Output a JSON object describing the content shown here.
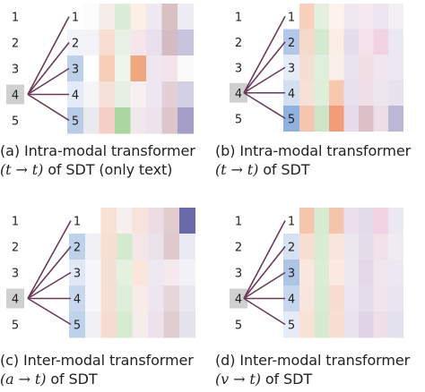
{
  "panels": [
    {
      "id": "a",
      "caption_line1": "(a) Intra-modal transformer",
      "caption_math": "(t → t)",
      "caption_rest": " of SDT (only text)",
      "left_labels": [
        "1",
        "2",
        "3",
        "4",
        "5"
      ],
      "row_labels": [
        "1",
        "2",
        "3",
        "4",
        "5"
      ],
      "highlighted_left": "4",
      "row_label_colors": [
        "#ffffff",
        "#f0f3fa",
        "#bcd0ea",
        "#e4eaf6",
        "#b8cce8"
      ],
      "cells": [
        [
          "#fcfcfc",
          "#f6ecea",
          "#d9edd7",
          "#fbefe6",
          "#efe9f1",
          "#d9c1c3",
          "#eeebf2"
        ],
        [
          "#f3f3f7",
          "#f8ddd0",
          "#e8f2e4",
          "#f6e5ea",
          "#e8e0ec",
          "#d4bcc6",
          "#c9c4dd"
        ],
        [
          "#ffffff",
          "#f7cfb8",
          "#eef5ea",
          "#f0a67e",
          "#efe6f0",
          "#f2e4ea",
          "#fafafa"
        ],
        [
          "#f5f5f8",
          "#f6e0d8",
          "#e6f0e2",
          "#f7f0f0",
          "#ede7ef",
          "#e2d0d6",
          "#d4d0e3"
        ],
        [
          "#e9e9ee",
          "#f5d0c8",
          "#a9d6a1",
          "#f1e8ec",
          "#ede3ec",
          "#dcc6cb",
          "#a59ec6"
        ]
      ]
    },
    {
      "id": "b",
      "caption_line1": "(b) Intra-modal transformer",
      "caption_math": "(t → t)",
      "caption_rest": " of SDT",
      "left_labels": [
        "1",
        "2",
        "3",
        "4",
        "5"
      ],
      "row_labels": [
        "1",
        "2",
        "3",
        "4",
        "5"
      ],
      "highlighted_left": "4",
      "row_label_colors": [
        "#ffffff",
        "#b3c8e8",
        "#e6ecf7",
        "#d2dff1",
        "#8fb1df"
      ],
      "cells": [
        [
          "#f8d0bb",
          "#e3f0df",
          "#fdf2ec",
          "#f0e9f2",
          "#f5e8ee",
          "#ece4ef",
          "#f2f0f5"
        ],
        [
          "#f6d9c9",
          "#d4e9cf",
          "#fbeee6",
          "#e5dcec",
          "#f4e1ea",
          "#f1d2e3",
          "#ebe8f2"
        ],
        [
          "#f4ddd3",
          "#e0efdb",
          "#fbefe9",
          "#e9e3ef",
          "#f2dfe6",
          "#efe6f0",
          "#ece8f2"
        ],
        [
          "#f7e1d7",
          "#dfeed9",
          "#f8c7ae",
          "#e9e2ee",
          "#f1dfe7",
          "#eee6ef",
          "#e6e3ef"
        ],
        [
          "#f6c5b0",
          "#cfe5c9",
          "#f19c77",
          "#e5dbeb",
          "#dcbfc7",
          "#efdde6",
          "#bdb7d6"
        ]
      ]
    },
    {
      "id": "c",
      "caption_line1": "(c) Inter-modal transformer",
      "caption_math": "(a → t)",
      "caption_rest": " of SDT",
      "left_labels": [
        "1",
        "2",
        "3",
        "4",
        "5"
      ],
      "row_labels": [
        "1",
        "2",
        "3",
        "4",
        "5"
      ],
      "highlighted_left": "4",
      "row_label_colors": [
        "#ffffff",
        "#bfd2eb",
        "#e0e8f5",
        "#c8d8ee",
        "#bfd2eb"
      ],
      "cells": [
        [
          "#ffffff",
          "#f9e1d5",
          "#f7eeee",
          "#f8e3da",
          "#ecdde4",
          "#e1cdd0",
          "#6a6aa8"
        ],
        [
          "#f1f1f5",
          "#f7dfd2",
          "#d3eacd",
          "#f5e6ea",
          "#ece2ec",
          "#dfc9ce",
          "#eaeaf2"
        ],
        [
          "#f6f6f8",
          "#f5e0d6",
          "#e4f1df",
          "#fbe6dc",
          "#eee8f0",
          "#f3e9ee",
          "#f2f2f6"
        ],
        [
          "#f7f7f9",
          "#f6dfd4",
          "#dfeed9",
          "#f8ece8",
          "#ede6ef",
          "#e6d6dc",
          "#e9e8f1"
        ],
        [
          "#f1f1f5",
          "#f6dcd0",
          "#d6ebd0",
          "#f6ece9",
          "#ebe2ec",
          "#e0cdd2",
          "#e4e3ee"
        ]
      ]
    },
    {
      "id": "d",
      "caption_line1": "(d) Inter-modal transformer",
      "caption_math": "(v → t)",
      "caption_rest": " of SDT",
      "left_labels": [
        "1",
        "2",
        "3",
        "4",
        "5"
      ],
      "row_labels": [
        "1",
        "2",
        "3",
        "4",
        "5"
      ],
      "highlighted_left": "4",
      "row_label_colors": [
        "#ffffff",
        "#d6e1f2",
        "#adc4e6",
        "#c6d6ee",
        "#e6ecf7"
      ],
      "cells": [
        [
          "#f6c6ac",
          "#d7ebd2",
          "#f6c3ab",
          "#ebe0ed",
          "#e4dbea",
          "#f0d2e3",
          "#ebe8f2"
        ],
        [
          "#f9dfd2",
          "#d9ecd3",
          "#f8e6dc",
          "#ece6ef",
          "#e5ddea",
          "#f3e1ea",
          "#eeebf3"
        ],
        [
          "#fae7de",
          "#dcedd6",
          "#fbe9e1",
          "#ede7f0",
          "#e2d8e8",
          "#f0e6ee",
          "#ebe8f2"
        ],
        [
          "#f9e5dc",
          "#d9ecd3",
          "#f7dccf",
          "#ece5ef",
          "#e4dcea",
          "#f1e4ec",
          "#e8e5f0"
        ],
        [
          "#f8e1d5",
          "#d5ead0",
          "#f8dfd2",
          "#eae3ee",
          "#e0d5e6",
          "#efdfe9",
          "#e4e1ee"
        ]
      ]
    }
  ],
  "colors": {
    "line": "#6b3a5a",
    "highlight_box": "#d0d0d0",
    "text": "#222222"
  }
}
